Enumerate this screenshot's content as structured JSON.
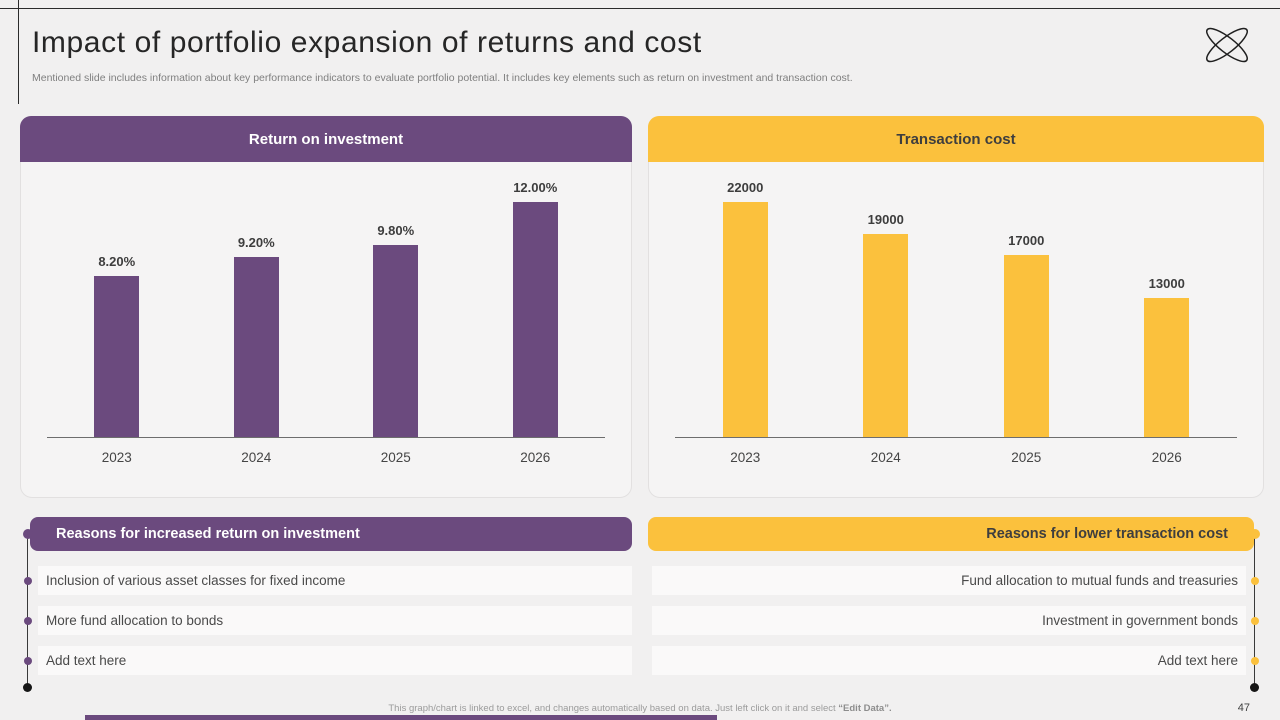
{
  "slide": {
    "title": "Impact of portfolio expansion of returns and cost",
    "subtitle": "Mentioned slide includes information about key performance indicators to evaluate portfolio potential. It includes key elements such as return on investment and transaction cost.",
    "page_number": "47",
    "footer_prefix": "This graph/chart is linked to excel, and changes automatically based on data. Just left click on it and select ",
    "footer_emphasis": "“Edit Data”."
  },
  "colors": {
    "purple": "#6B4A7E",
    "yellow": "#FBC13D",
    "background": "#F1F0F0"
  },
  "chart_data": [
    {
      "type": "bar",
      "title": "Return on investment",
      "categories": [
        "2023",
        "2024",
        "2025",
        "2026"
      ],
      "values": [
        8.2,
        9.2,
        9.8,
        12.0
      ],
      "labels": [
        "8.20%",
        "9.20%",
        "9.80%",
        "12.00%"
      ],
      "color": "#6B4A7E",
      "ylabel": "",
      "xlabel": "",
      "ylim": [
        0,
        13
      ],
      "grid": false,
      "legend": "none"
    },
    {
      "type": "bar",
      "title": "Transaction cost",
      "categories": [
        "2023",
        "2024",
        "2025",
        "2026"
      ],
      "values": [
        22000,
        19000,
        17000,
        13000
      ],
      "labels": [
        "22000",
        "19000",
        "17000",
        "13000"
      ],
      "color": "#FBC13D",
      "ylabel": "",
      "xlabel": "",
      "ylim": [
        0,
        24000
      ],
      "grid": false,
      "legend": "none"
    }
  ],
  "lists": {
    "left": {
      "title": "Reasons for increased return on investment",
      "items": [
        "Inclusion of various asset classes for fixed income",
        "More fund allocation to bonds",
        "Add text here"
      ]
    },
    "right": {
      "title": "Reasons for lower transaction cost",
      "items": [
        "Fund allocation to mutual funds and treasuries",
        "Investment in government bonds",
        "Add text here"
      ]
    }
  }
}
